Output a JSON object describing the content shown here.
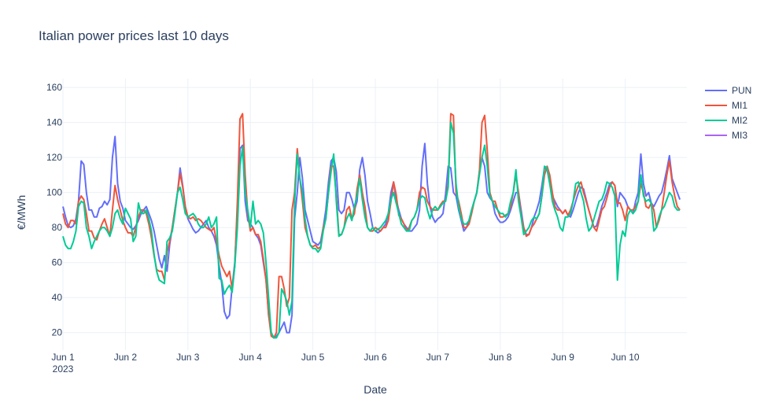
{
  "chart_data": {
    "type": "line",
    "title": "Italian power prices last 10 days",
    "xlabel": "Date",
    "ylabel": "€/MWh",
    "x_start": "2023-06-01T00:00",
    "x_step_hours": 1,
    "xlim": [
      "2023-06-01T00:00",
      "2023-06-10T23:00"
    ],
    "ylim": [
      10,
      165
    ],
    "x_ticks": [
      {
        "label": "Jun 1",
        "sublabel": "2023",
        "date": "2023-06-01"
      },
      {
        "label": "Jun 2",
        "date": "2023-06-02"
      },
      {
        "label": "Jun 3",
        "date": "2023-06-03"
      },
      {
        "label": "Jun 4",
        "date": "2023-06-04"
      },
      {
        "label": "Jun 5",
        "date": "2023-06-05"
      },
      {
        "label": "Jun 6",
        "date": "2023-06-06"
      },
      {
        "label": "Jun 7",
        "date": "2023-06-07"
      },
      {
        "label": "Jun 8",
        "date": "2023-06-08"
      },
      {
        "label": "Jun 9",
        "date": "2023-06-09"
      },
      {
        "label": "Jun 10",
        "date": "2023-06-10"
      }
    ],
    "y_ticks": [
      20,
      40,
      60,
      80,
      100,
      120,
      140,
      160
    ],
    "grid": true,
    "legend_position": "top-right",
    "series": [
      {
        "name": "PUN",
        "color": "#636efa",
        "values": [
          [
            92,
            86,
            81,
            80,
            81,
            85,
            95,
            118,
            116,
            100,
            90,
            90,
            86,
            86,
            91,
            92,
            95,
            93,
            96,
            120,
            132,
            105,
            95,
            91,
            84,
            82,
            80,
            79,
            81,
            84,
            88,
            90,
            92,
            88,
            84,
            78,
            70,
            62,
            57,
            64,
            55,
            70,
            80,
            90,
            100,
            114,
            104,
            92,
            85,
            82,
            79,
            77,
            78,
            80,
            82,
            84,
            80,
            78,
            75,
            70,
            58,
            48,
            32,
            28,
            30,
            46,
            60,
            90,
            125,
            127,
            95,
            84,
            82,
            80,
            76,
            74,
            70,
            60,
            50,
            30,
            20,
            17,
            18,
            20,
            23,
            26,
            20,
            20,
            30,
            85,
            100,
            120,
            108,
            90,
            84,
            78,
            72,
            71,
            70,
            72,
            80,
            90,
            106,
            118,
            120,
            112,
            90,
            88,
            90,
            100,
            100,
            96,
            90,
            95,
            113,
            120,
            110,
            95,
            88,
            80,
            78,
            77,
            78,
            80,
            82,
            88,
            100,
            106,
            96,
            90,
            85,
            82,
            80,
            78,
            78,
            80,
            82,
            90,
            115,
            128,
            105,
            92,
            86,
            83,
            85,
            86,
            88,
            99,
            115,
            114,
            100,
            98,
            90,
            84,
            78,
            80,
            84,
            90,
            95,
            100,
            112,
            120,
            115,
            100,
            97,
            95,
            88,
            85,
            83,
            83,
            84,
            86,
            90,
            95,
            100,
            100,
            90,
            80,
            76,
            76,
            80,
            86,
            90,
            95,
            104,
            114,
            113,
            105,
            98,
            95,
            92,
            90,
            88,
            90,
            87,
            86,
            90,
            95,
            100,
            103,
            102,
            96,
            90,
            85,
            80,
            81,
            86,
            92,
            96,
            100,
            105,
            106,
            104,
            92,
            100,
            98,
            96,
            92,
            90,
            88,
            95,
            100,
            122,
            105,
            98,
            100,
            94,
            92,
            95,
            98,
            100,
            106,
            113,
            121,
            108,
            104,
            100,
            96
          ]
        ]
      },
      {
        "name": "MI1",
        "color": "#ef553b",
        "values": [
          [
            88,
            82,
            80,
            84,
            84,
            82,
            95,
            98,
            96,
            88,
            78,
            78,
            74,
            73,
            78,
            82,
            85,
            80,
            75,
            90,
            104,
            96,
            90,
            84,
            80,
            77,
            77,
            75,
            80,
            86,
            90,
            90,
            88,
            82,
            74,
            64,
            56,
            55,
            55,
            50,
            66,
            72,
            80,
            90,
            100,
            111,
            103,
            92,
            86,
            85,
            86,
            84,
            85,
            84,
            82,
            80,
            79,
            78,
            80,
            72,
            64,
            58,
            55,
            52,
            55,
            45,
            58,
            95,
            142,
            145,
            110,
            88,
            78,
            80,
            76,
            76,
            72,
            62,
            50,
            30,
            18,
            17,
            20,
            52,
            52,
            45,
            35,
            40,
            90,
            100,
            125,
            108,
            95,
            80,
            75,
            70,
            69,
            70,
            68,
            69,
            80,
            85,
            100,
            115,
            115,
            98,
            76,
            76,
            80,
            90,
            92,
            85,
            88,
            102,
            110,
            100,
            92,
            80,
            78,
            78,
            80,
            79,
            78,
            80,
            80,
            84,
            95,
            106,
            99,
            87,
            85,
            82,
            78,
            80,
            84,
            86,
            90,
            100,
            103,
            102,
            95,
            92,
            90,
            90,
            90,
            93,
            95,
            95,
            105,
            145,
            144,
            100,
            95,
            88,
            80,
            80,
            82,
            88,
            95,
            100,
            112,
            140,
            144,
            124,
            100,
            95,
            95,
            90,
            86,
            86,
            87,
            88,
            92,
            100,
            110,
            100,
            87,
            80,
            75,
            76,
            80,
            82,
            85,
            88,
            98,
            110,
            115,
            110,
            100,
            92,
            90,
            90,
            88,
            90,
            87,
            90,
            95,
            100,
            104,
            106,
            100,
            95,
            90,
            85,
            80,
            78,
            84,
            90,
            92,
            97,
            103,
            106,
            104,
            94,
            94,
            90,
            84,
            92,
            90,
            90,
            92,
            95,
            105,
            100,
            92,
            91,
            94,
            90,
            80,
            84,
            90,
            100,
            110,
            118,
            106,
            98,
            92,
            90
          ]
        ]
      },
      {
        "name": "MI2",
        "color": "#00cc96",
        "values": [
          [
            75,
            70,
            68,
            68,
            72,
            78,
            92,
            95,
            94,
            80,
            75,
            68,
            72,
            75,
            78,
            80,
            80,
            78,
            75,
            80,
            88,
            90,
            85,
            82,
            91,
            88,
            85,
            72,
            75,
            94,
            88,
            88,
            90,
            85,
            78,
            65,
            55,
            50,
            49,
            48,
            72,
            74,
            78,
            88,
            100,
            103,
            96,
            88,
            86,
            87,
            88,
            86,
            82,
            80,
            80,
            82,
            86,
            80,
            82,
            86,
            51,
            50,
            42,
            45,
            47,
            43,
            58,
            80,
            115,
            126,
            100,
            90,
            80,
            95,
            82,
            84,
            82,
            77,
            60,
            40,
            20,
            17,
            17,
            20,
            45,
            42,
            38,
            30,
            38,
            94,
            122,
            108,
            100,
            85,
            75,
            70,
            68,
            68,
            66,
            68,
            78,
            85,
            100,
            112,
            122,
            95,
            75,
            76,
            80,
            85,
            88,
            84,
            92,
            98,
            108,
            96,
            86,
            80,
            78,
            80,
            78,
            79,
            80,
            82,
            84,
            88,
            96,
            100,
            94,
            88,
            82,
            80,
            78,
            78,
            84,
            86,
            90,
            96,
            98,
            97,
            90,
            85,
            90,
            92,
            90,
            92,
            94,
            95,
            103,
            140,
            134,
            105,
            92,
            85,
            82,
            82,
            84,
            90,
            95,
            100,
            110,
            120,
            127,
            115,
            98,
            95,
            92,
            90,
            88,
            88,
            86,
            88,
            95,
            100,
            113,
            95,
            86,
            76,
            78,
            80,
            84,
            86,
            85,
            88,
            98,
            115,
            114,
            105,
            95,
            90,
            86,
            80,
            78,
            86,
            86,
            88,
            95,
            105,
            106,
            100,
            95,
            85,
            78,
            80,
            85,
            90,
            95,
            96,
            100,
            106,
            105,
            103,
            98,
            50,
            70,
            78,
            75,
            87,
            90,
            88,
            90,
            95,
            110,
            98,
            95,
            96,
            94,
            78,
            80,
            86,
            90,
            92,
            96,
            100,
            98,
            92,
            90,
            90
          ]
        ]
      },
      {
        "name": "MI3",
        "color": "#ab63fa",
        "values": [
          [
            null,
            null,
            null,
            null,
            null,
            null,
            null,
            null,
            null,
            null,
            null,
            null,
            null,
            null,
            null,
            null,
            null,
            null,
            null,
            null,
            null,
            null,
            null,
            null,
            null,
            null,
            null,
            null,
            null,
            null,
            null,
            null,
            null,
            null,
            null,
            null,
            null,
            null,
            null,
            null,
            null,
            null,
            null,
            null,
            null,
            null,
            null,
            null,
            null,
            null,
            null,
            null,
            null,
            null,
            null,
            null,
            null,
            null,
            null,
            null,
            null,
            null,
            null,
            null,
            null,
            null,
            null,
            null,
            null,
            null,
            null,
            null,
            null,
            null,
            null,
            null,
            null,
            null,
            null,
            null,
            null,
            null,
            null,
            null,
            null,
            null,
            null,
            null,
            null,
            null,
            null,
            null,
            null,
            null,
            null,
            null,
            null,
            null,
            null,
            null,
            null,
            null,
            null,
            null,
            null,
            null,
            null,
            null,
            null,
            null,
            null,
            null,
            null,
            null,
            null,
            null,
            null,
            null,
            null,
            null,
            null,
            null,
            null,
            null,
            null,
            null,
            null,
            null,
            null,
            null,
            null,
            null,
            null,
            null,
            null,
            null,
            null,
            null,
            null,
            null,
            null,
            null,
            null,
            null,
            null,
            null,
            null,
            null,
            null,
            null,
            null,
            null,
            null,
            null,
            null,
            null,
            null,
            null,
            null,
            null,
            null,
            null,
            null,
            null,
            null,
            null,
            null,
            null,
            null,
            null,
            null,
            null,
            null,
            null,
            null,
            null,
            null,
            null,
            null,
            null,
            null,
            null,
            null,
            null,
            null,
            null,
            null,
            null,
            null,
            null,
            null,
            null,
            null,
            null,
            null,
            null,
            null,
            null,
            null,
            null,
            null,
            null,
            null,
            null,
            null,
            null,
            null,
            null,
            null,
            null,
            null,
            null,
            null,
            null,
            null,
            null,
            null,
            null,
            null,
            null,
            null,
            null,
            null,
            null,
            null,
            null,
            null,
            null,
            null,
            null,
            null,
            null,
            null,
            null,
            null,
            null,
            null,
            null
          ]
        ]
      }
    ]
  }
}
